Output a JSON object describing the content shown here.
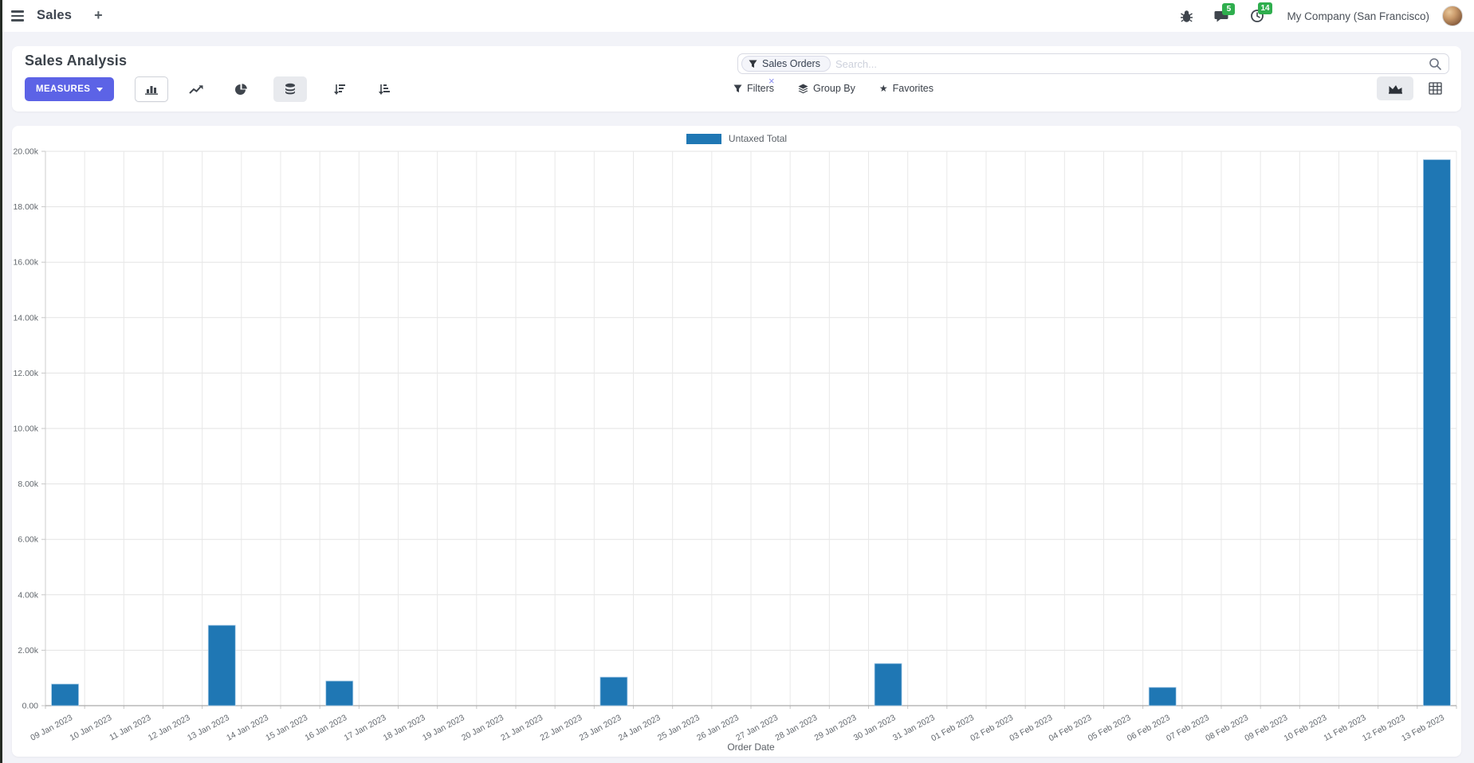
{
  "navbar": {
    "menu_title": "Sales",
    "plus_label": "+",
    "message_badge": "5",
    "activity_badge": "14",
    "company": "My Company (San Francisco)"
  },
  "control_panel": {
    "title": "Sales Analysis",
    "measures_label": "MEASURES",
    "search": {
      "facet_label": "Sales Orders",
      "facet_close": "×",
      "placeholder": "Search..."
    },
    "filter_menus": [
      {
        "label": "Filters",
        "icon": "funnel-icon"
      },
      {
        "label": "Group By",
        "icon": "layers-icon"
      },
      {
        "label": "Favorites",
        "icon": "star-icon",
        "glyph": "★"
      }
    ],
    "chart_type_buttons": [
      "bar-chart",
      "line-chart",
      "pie-chart",
      "stacked-toggle",
      "sort-descending",
      "sort-ascending"
    ],
    "view_switcher": [
      "graph-view",
      "pivot-view"
    ]
  },
  "chart_data": {
    "type": "bar",
    "legend": [
      "Untaxed Total"
    ],
    "xlabel": "Order Date",
    "categories": [
      "09 Jan 2023",
      "10 Jan 2023",
      "11 Jan 2023",
      "12 Jan 2023",
      "13 Jan 2023",
      "14 Jan 2023",
      "15 Jan 2023",
      "16 Jan 2023",
      "17 Jan 2023",
      "18 Jan 2023",
      "19 Jan 2023",
      "20 Jan 2023",
      "21 Jan 2023",
      "22 Jan 2023",
      "23 Jan 2023",
      "24 Jan 2023",
      "25 Jan 2023",
      "26 Jan 2023",
      "27 Jan 2023",
      "28 Jan 2023",
      "29 Jan 2023",
      "30 Jan 2023",
      "31 Jan 2023",
      "01 Feb 2023",
      "02 Feb 2023",
      "03 Feb 2023",
      "04 Feb 2023",
      "05 Feb 2023",
      "06 Feb 2023",
      "07 Feb 2023",
      "08 Feb 2023",
      "09 Feb 2023",
      "10 Feb 2023",
      "11 Feb 2023",
      "12 Feb 2023",
      "13 Feb 2023"
    ],
    "series": [
      {
        "name": "Untaxed Total",
        "values": [
          780,
          0,
          0,
          0,
          2900,
          0,
          0,
          890,
          0,
          0,
          0,
          0,
          0,
          0,
          1030,
          0,
          0,
          0,
          0,
          0,
          0,
          1520,
          0,
          0,
          0,
          0,
          0,
          0,
          660,
          0,
          0,
          0,
          0,
          0,
          0,
          19700
        ]
      }
    ],
    "ylim": [
      0,
      20000
    ],
    "ytick_step": 2000,
    "ytick_labels_top_down": [
      "20.00k",
      "18.00k",
      "16.00k",
      "14.00k",
      "12.00k",
      "10.00k",
      "8.00k",
      "6.00k",
      "4.00k",
      "2.00k",
      "0.00"
    ],
    "grid": true,
    "legend_position": "top-center",
    "bar_color": "#1f77b4"
  }
}
